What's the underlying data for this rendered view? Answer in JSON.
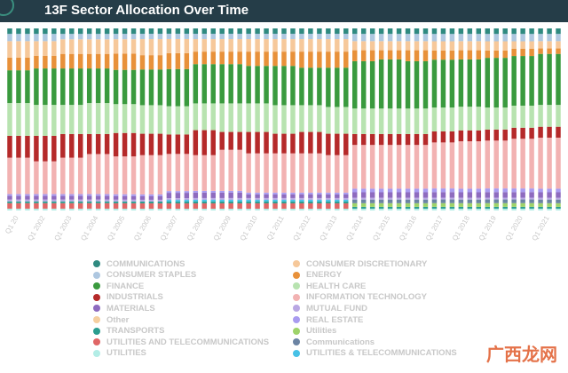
{
  "header": {
    "title": "13F Sector Allocation Over Time"
  },
  "watermark": "广西龙网",
  "chart_data": {
    "type": "bar",
    "stacked": true,
    "normalized": true,
    "title": "13F Sector Allocation Over Time",
    "xlabel": "",
    "ylabel": "",
    "ylim": [
      0,
      100
    ],
    "grid": false,
    "legend_position": "bottom",
    "categories": [
      "Q1 20",
      "Q1 2002",
      "Q1 2003",
      "Q1 2004",
      "Q1 2005",
      "Q1 2006",
      "Q1 2007",
      "Q1 2008",
      "Q1 2009",
      "Q1 2010",
      "Q1 2011",
      "Q1 2012",
      "Q1 2013",
      "Q1 2014",
      "Q1 2015",
      "Q1 2016",
      "Q1 2017",
      "Q1 2018",
      "Q1 2019",
      "Q1 2020",
      "Q1 2021"
    ],
    "series": [
      {
        "name": "UTILITIES",
        "color": "#b3ede6",
        "values": [
          1,
          1,
          1,
          1,
          1,
          1,
          1,
          1,
          1,
          1,
          1,
          1,
          1,
          1,
          1,
          1,
          1,
          1,
          1,
          1,
          1
        ]
      },
      {
        "name": "UTILITIES AND TELECOMMUNICATIONS",
        "color": "#e06666",
        "values": [
          3,
          3,
          3,
          3,
          3,
          3,
          3,
          3,
          3,
          3,
          3,
          3,
          3,
          0,
          0,
          0,
          0,
          0,
          0,
          0,
          0
        ]
      },
      {
        "name": "TRANSPORTS",
        "color": "#2a9d8f",
        "values": [
          1,
          1,
          1,
          1,
          1,
          1,
          1,
          1,
          1,
          1,
          1,
          1,
          1,
          1,
          1,
          1,
          1,
          1,
          1,
          1,
          1
        ]
      },
      {
        "name": "Utilities",
        "color": "#9ed36a",
        "values": [
          0,
          0,
          0,
          0,
          0,
          0,
          0,
          0,
          0,
          0,
          0,
          0,
          0,
          2,
          2,
          2,
          2,
          2,
          2,
          2,
          2
        ]
      },
      {
        "name": "Communications",
        "color": "#6b84a3",
        "values": [
          0,
          0,
          0,
          0,
          0,
          0,
          0,
          0,
          0,
          0,
          0,
          0,
          0,
          2,
          2,
          2,
          2,
          2,
          2,
          2,
          2
        ]
      },
      {
        "name": "UTILITIES & TELECOMMUNICATIONS",
        "color": "#47c1e6",
        "values": [
          0,
          0,
          0,
          0,
          0,
          0,
          1,
          1,
          1,
          1,
          1,
          1,
          1,
          0,
          0,
          0,
          0,
          0,
          0,
          0,
          0
        ]
      },
      {
        "name": "MUTUAL FUND",
        "color": "#b9a7e3",
        "values": [
          1,
          1,
          1,
          1,
          1,
          1,
          1,
          1,
          1,
          1,
          1,
          1,
          1,
          1,
          1,
          1,
          1,
          1,
          1,
          1,
          1
        ]
      },
      {
        "name": "MATERIALS",
        "color": "#8e6bbf",
        "values": [
          2,
          2,
          2,
          2,
          2,
          2,
          3,
          3,
          3,
          2,
          2,
          2,
          2,
          3,
          3,
          3,
          3,
          3,
          3,
          3,
          3
        ]
      },
      {
        "name": "REAL ESTATE",
        "color": "#a99bf0",
        "values": [
          1,
          1,
          1,
          1,
          1,
          1,
          1,
          1,
          1,
          1,
          1,
          1,
          1,
          2,
          2,
          2,
          2,
          2,
          2,
          2,
          2
        ]
      },
      {
        "name": "INFORMATION TECHNOLOGY",
        "color": "#f2b2b2",
        "values": [
          20,
          18,
          20,
          22,
          21,
          22,
          21,
          20,
          23,
          22,
          22,
          22,
          21,
          24,
          24,
          24,
          25,
          26,
          26,
          27,
          28
        ]
      },
      {
        "name": "INDUSTRIALS",
        "color": "#b52a2a",
        "values": [
          12,
          14,
          13,
          11,
          13,
          12,
          11,
          14,
          10,
          12,
          11,
          12,
          12,
          6,
          6,
          6,
          6,
          6,
          6,
          6,
          6
        ]
      },
      {
        "name": "HEALTH CARE",
        "color": "#b8e3b0",
        "values": [
          18,
          17,
          16,
          17,
          16,
          16,
          16,
          15,
          16,
          16,
          16,
          15,
          15,
          14,
          14,
          14,
          13,
          13,
          12,
          12,
          12
        ]
      },
      {
        "name": "FINANCE",
        "color": "#3a9a3e",
        "values": [
          18,
          20,
          20,
          19,
          19,
          20,
          21,
          22,
          22,
          21,
          22,
          21,
          22,
          26,
          27,
          26,
          26,
          26,
          27,
          27,
          28
        ]
      },
      {
        "name": "ENERGY",
        "color": "#e8913a",
        "values": [
          7,
          7,
          8,
          8,
          9,
          8,
          9,
          7,
          7,
          8,
          8,
          9,
          9,
          6,
          5,
          6,
          5,
          5,
          4,
          4,
          3
        ]
      },
      {
        "name": "CONSUMER DISCRETIONARY",
        "color": "#f6c89a",
        "values": [
          9,
          8,
          8,
          8,
          8,
          9,
          8,
          7,
          7,
          7,
          7,
          7,
          7,
          5,
          5,
          5,
          5,
          5,
          5,
          4,
          4
        ]
      },
      {
        "name": "CONSUMER STAPLES",
        "color": "#aec7e0",
        "values": [
          4,
          4,
          3,
          3,
          3,
          3,
          3,
          3,
          3,
          3,
          3,
          3,
          3,
          4,
          4,
          4,
          4,
          4,
          4,
          4,
          4
        ]
      },
      {
        "name": "Other",
        "color": "#f5cfa0",
        "values": [
          0,
          0,
          0,
          0,
          0,
          0,
          0,
          0,
          0,
          0,
          0,
          0,
          0,
          0,
          0,
          0,
          0,
          0,
          0,
          0,
          0
        ]
      },
      {
        "name": "COMMUNICATIONS",
        "color": "#2f8a80",
        "values": [
          3,
          3,
          3,
          3,
          3,
          3,
          3,
          3,
          3,
          3,
          3,
          3,
          3,
          3,
          3,
          3,
          3,
          3,
          3,
          3,
          3
        ]
      }
    ]
  },
  "legend": {
    "items": [
      {
        "label": "COMMUNICATIONS",
        "color": "#2f8a80"
      },
      {
        "label": "CONSUMER DISCRETIONARY",
        "color": "#f6c89a"
      },
      {
        "label": "CONSUMER STAPLES",
        "color": "#aec7e0"
      },
      {
        "label": "ENERGY",
        "color": "#e8913a"
      },
      {
        "label": "FINANCE",
        "color": "#3a9a3e"
      },
      {
        "label": "HEALTH CARE",
        "color": "#b8e3b0"
      },
      {
        "label": "INDUSTRIALS",
        "color": "#b52a2a"
      },
      {
        "label": "INFORMATION TECHNOLOGY",
        "color": "#f2b2b2"
      },
      {
        "label": "MATERIALS",
        "color": "#8e6bbf"
      },
      {
        "label": "MUTUAL FUND",
        "color": "#b9a7e3"
      },
      {
        "label": "Other",
        "color": "#f5cfa0"
      },
      {
        "label": "REAL ESTATE",
        "color": "#a99bf0"
      },
      {
        "label": "TRANSPORTS",
        "color": "#2a9d8f"
      },
      {
        "label": "Utilities",
        "color": "#9ed36a"
      },
      {
        "label": "UTILITIES AND TELECOMMUNICATIONS",
        "color": "#e06666"
      },
      {
        "label": "Communications",
        "color": "#6b84a3"
      },
      {
        "label": "UTILITIES",
        "color": "#b3ede6"
      },
      {
        "label": "UTILITIES & TELECOMMUNICATIONS",
        "color": "#47c1e6"
      }
    ]
  }
}
